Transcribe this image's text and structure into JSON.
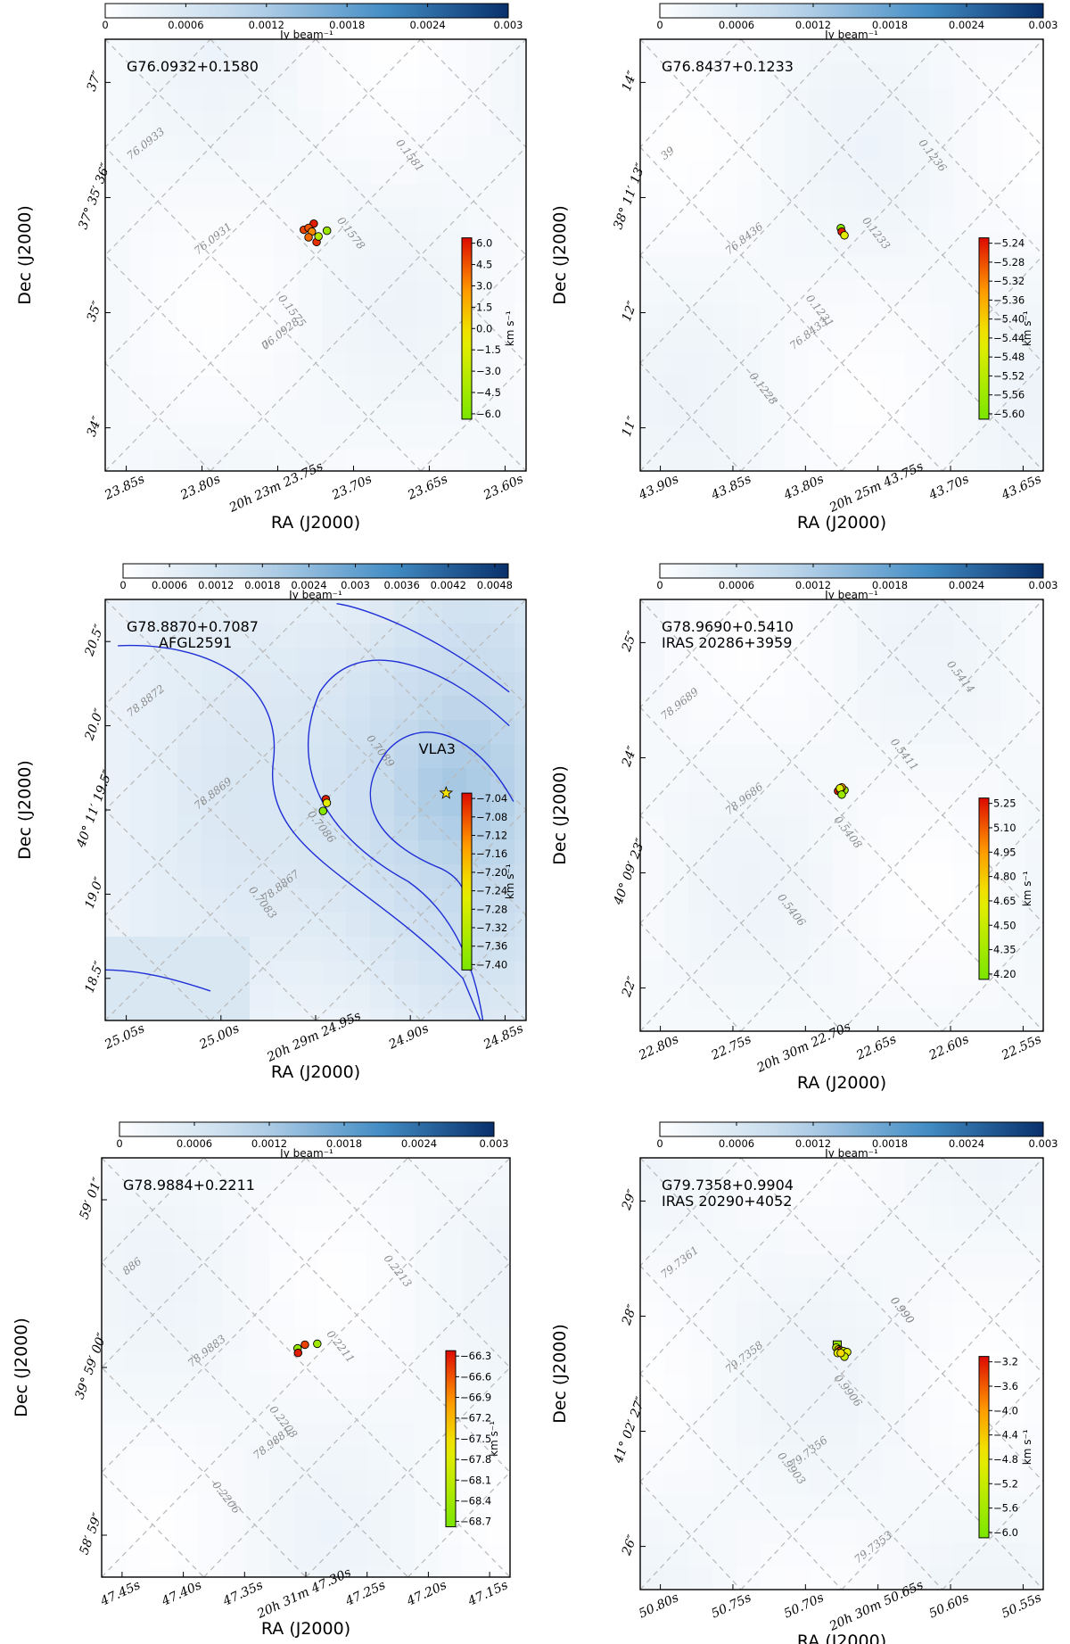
{
  "figure_title": "Maser spot maps over continuum images",
  "chart_data": [
    {
      "type": "scatter",
      "title": "G76.0932+0.1580",
      "subtitle": "",
      "xlabel": "RA (J2000)",
      "ylabel": "Dec (J2000)",
      "x_ticks": [
        "23.85s",
        "23.80s",
        "20h 23m 23.75s",
        "23.70s",
        "23.65s",
        "23.60s"
      ],
      "y_ticks": [
        "37″",
        "37° 35′ 36″",
        "35″",
        "34″"
      ],
      "continuum_colorbar": {
        "ticks": [
          "0",
          "0.0006",
          "0.0012",
          "0.0018",
          "0.0024",
          "0.003"
        ],
        "unit": "Jy beam⁻¹",
        "range": [
          0,
          0.003
        ]
      },
      "velocity_colorbar": {
        "ticks": [
          "6.0",
          "4.5",
          "3.0",
          "1.5",
          "0.0",
          "−1.5",
          "−3.0",
          "−4.5",
          "−6.0"
        ],
        "unit": "km s⁻¹",
        "range": [
          -6.5,
          6.5
        ]
      },
      "galactic_grid_labels": [
        "76.0933",
        "76.0931",
        "76.0928",
        "0.1581",
        "0.1578",
        "0.1575",
        "0."
      ],
      "points": [
        {
          "dx": -0.04,
          "dy": 0.21,
          "v": 6.0,
          "marker": "o"
        },
        {
          "dx": -0.25,
          "dy": 0.08,
          "v": 5.0,
          "marker": "o"
        },
        {
          "dx": -0.15,
          "dy": 0.12,
          "v": 4.5,
          "marker": "o"
        },
        {
          "dx": -0.08,
          "dy": 0.04,
          "v": 3.2,
          "marker": "o"
        },
        {
          "dx": -0.15,
          "dy": -0.08,
          "v": 4.0,
          "marker": "o"
        },
        {
          "dx": 0.02,
          "dy": -0.18,
          "v": 5.5,
          "marker": "o"
        },
        {
          "dx": 0.06,
          "dy": -0.06,
          "v": -3.5,
          "marker": "o"
        },
        {
          "dx": 0.24,
          "dy": 0.06,
          "v": -4.8,
          "marker": "o"
        }
      ],
      "contours": false,
      "star": null
    },
    {
      "type": "scatter",
      "title": "G76.8437+0.1233",
      "subtitle": "",
      "xlabel": "RA (J2000)",
      "ylabel": "Dec (J2000)",
      "x_ticks": [
        "43.90s",
        "43.85s",
        "43.80s",
        "20h 25m 43.75s",
        "43.70s",
        "43.65s"
      ],
      "y_ticks": [
        "14″",
        "38° 11′ 13″",
        "12″",
        "11″"
      ],
      "continuum_colorbar": {
        "ticks": [
          "0",
          "0.0006",
          "0.0012",
          "0.0018",
          "0.0024",
          "0.003"
        ],
        "unit": "Jy beam⁻¹",
        "range": [
          0,
          0.003
        ]
      },
      "velocity_colorbar": {
        "ticks": [
          "−5.24",
          "−5.28",
          "−5.32",
          "−5.36",
          "−5.40",
          "−5.44",
          "−5.48",
          "−5.52",
          "−5.56",
          "−5.60"
        ],
        "unit": "km s⁻¹",
        "range": [
          -5.6,
          -5.235
        ]
      },
      "galactic_grid_labels": [
        "39",
        "76.8436",
        "76.8433",
        "0.1236",
        "0.1233",
        "0.1231",
        "0.1228"
      ],
      "points": [
        {
          "dx": -0.02,
          "dy": 0.12,
          "v": -5.58,
          "marker": "o"
        },
        {
          "dx": 0.0,
          "dy": 0.04,
          "v": -5.25,
          "marker": "o"
        },
        {
          "dx": 0.06,
          "dy": -0.04,
          "v": -5.45,
          "marker": "o"
        }
      ],
      "contours": false,
      "star": null
    },
    {
      "type": "scatter",
      "title": "G78.8870+0.7087",
      "subtitle": "AFGL2591",
      "xlabel": "RA (J2000)",
      "ylabel": "Dec (J2000)",
      "x_ticks": [
        "25.05s",
        "25.00s",
        "20h 29m 24.95s",
        "24.90s",
        "24.85s"
      ],
      "y_ticks": [
        "20.5″",
        "20.0″",
        "40° 11′ 19.5″",
        "19.0″",
        "18.5″"
      ],
      "continuum_colorbar": {
        "ticks": [
          "0",
          "0.0006",
          "0.0012",
          "0.0018",
          "0.0024",
          "0.003",
          "0.0036",
          "0.0042",
          "0.0048"
        ],
        "unit": "Jy beam⁻¹",
        "range": [
          0,
          0.005
        ]
      },
      "velocity_colorbar": {
        "ticks": [
          "−7.04",
          "−7.08",
          "−7.12",
          "−7.16",
          "−7.20",
          "−7.24",
          "−7.28",
          "−7.32",
          "−7.36",
          "−7.40"
        ],
        "unit": "km s⁻¹",
        "range": [
          -7.4,
          -7.035
        ]
      },
      "galactic_grid_labels": [
        "78.8872",
        "78.8869",
        "78.8867",
        "0.7089",
        "0.7086",
        "0.7083"
      ],
      "points": [
        {
          "dx": -0.23,
          "dy": 0.05,
          "v": -7.05,
          "marker": "o"
        },
        {
          "dx": -0.21,
          "dy": -0.03,
          "v": -7.25,
          "marker": "o"
        },
        {
          "dx": -0.29,
          "dy": -0.2,
          "v": -7.38,
          "marker": "o"
        }
      ],
      "contours": true,
      "star": {
        "label": "VLA3"
      }
    },
    {
      "type": "scatter",
      "title": "G78.9690+0.5410",
      "subtitle": "IRAS 20286+3959",
      "xlabel": "RA (J2000)",
      "ylabel": "Dec (J2000)",
      "x_ticks": [
        "22.80s",
        "22.75s",
        "20h 30m 22.70s",
        "22.65s",
        "22.60s",
        "22.55s"
      ],
      "y_ticks": [
        "25″",
        "24″",
        "40° 09′ 23″",
        "22″"
      ],
      "continuum_colorbar": {
        "ticks": [
          "0",
          "0.0006",
          "0.0012",
          "0.0018",
          "0.0024",
          "0.003"
        ],
        "unit": "Jy beam⁻¹",
        "range": [
          0,
          0.003
        ]
      },
      "velocity_colorbar": {
        "ticks": [
          "5.25",
          "5.10",
          "4.95",
          "4.80",
          "4.65",
          "4.50",
          "4.35",
          "4.20"
        ],
        "unit": "km s⁻¹",
        "range": [
          4.1,
          5.36
        ]
      },
      "galactic_grid_labels": [
        "78.9689",
        "78.9686",
        "0.5414",
        "0.5411",
        "0.5408",
        "0.5406"
      ],
      "points": [
        {
          "dx": -0.08,
          "dy": 0.06,
          "v": 5.3,
          "marker": "o"
        },
        {
          "dx": -0.02,
          "dy": 0.06,
          "v": 4.7,
          "marker": "o"
        },
        {
          "dx": 0.02,
          "dy": 0.1,
          "v": 4.9,
          "marker": "o"
        },
        {
          "dx": 0.06,
          "dy": 0.08,
          "v": 4.3,
          "marker": "o"
        },
        {
          "dx": 0.0,
          "dy": 0.14,
          "v": 5.0,
          "marker": "o"
        },
        {
          "dx": -0.04,
          "dy": 0.12,
          "v": 4.6,
          "marker": "o"
        },
        {
          "dx": 0.0,
          "dy": -0.02,
          "v": 4.25,
          "marker": "o"
        }
      ],
      "contours": false,
      "star": null
    },
    {
      "type": "scatter",
      "title": "G78.9884+0.2211",
      "subtitle": "",
      "xlabel": "RA (J2000)",
      "ylabel": "Dec (J2000)",
      "x_ticks": [
        "47.45s",
        "47.40s",
        "47.35s",
        "20h 31m 47.30s",
        "47.25s",
        "47.20s",
        "47.15s"
      ],
      "y_ticks": [
        "59′ 01″",
        "39° 59′ 00″",
        "58′ 59″"
      ],
      "continuum_colorbar": {
        "ticks": [
          "0",
          "0.0006",
          "0.0012",
          "0.0018",
          "0.0024",
          "0.003"
        ],
        "unit": "Jy beam⁻¹",
        "range": [
          0,
          0.003
        ]
      },
      "velocity_colorbar": {
        "ticks": [
          "−66.3",
          "−66.6",
          "−66.9",
          "−67.2",
          "−67.5",
          "−67.8",
          "−68.1",
          "−68.4",
          "−68.7"
        ],
        "unit": "km s⁻¹",
        "range": [
          -68.9,
          -66.2
        ]
      },
      "galactic_grid_labels": [
        "886",
        "78.9883",
        "78.9881",
        "0.2213",
        "0.2211",
        "0.2208",
        "0.2206"
      ],
      "points": [
        {
          "dx": -0.18,
          "dy": -0.04,
          "v": -68.6,
          "marker": "o"
        },
        {
          "dx": -0.17,
          "dy": -0.14,
          "v": -66.3,
          "marker": "o"
        },
        {
          "dx": -0.02,
          "dy": 0.04,
          "v": -66.5,
          "marker": "o"
        },
        {
          "dx": 0.25,
          "dy": 0.06,
          "v": -68.5,
          "marker": "o"
        }
      ],
      "contours": false,
      "star": null
    },
    {
      "type": "scatter",
      "title": "G79.7358+0.9904",
      "subtitle": "IRAS 20290+4052",
      "xlabel": "RA (J2000)",
      "ylabel": "Dec (J2000)",
      "x_ticks": [
        "50.80s",
        "50.75s",
        "50.70s",
        "20h 30m 50.65s",
        "50.60s",
        "50.55s"
      ],
      "y_ticks": [
        "29″",
        "28″",
        "41° 02′ 27″",
        "26″"
      ],
      "continuum_colorbar": {
        "ticks": [
          "0",
          "0.0006",
          "0.0012",
          "0.0018",
          "0.0024",
          "0.003"
        ],
        "unit": "Jy beam⁻¹",
        "range": [
          0,
          0.003
        ]
      },
      "velocity_colorbar": {
        "ticks": [
          "−3.2",
          "−3.6",
          "−4.0",
          "−4.4",
          "−4.8",
          "−5.2",
          "−5.6",
          "−6.0"
        ],
        "unit": "km s⁻¹",
        "range": [
          -6.3,
          -3.0
        ]
      },
      "galactic_grid_labels": [
        "79.7361",
        "79.7358",
        "79.7356",
        "79.7353",
        "0.990",
        "0.9906",
        "0.9903",
        "0.990"
      ],
      "points": [
        {
          "dx": -0.1,
          "dy": 0.16,
          "v": -6.0,
          "marker": "s"
        },
        {
          "dx": -0.12,
          "dy": 0.1,
          "v": -5.4,
          "marker": "o"
        },
        {
          "dx": -0.07,
          "dy": 0.06,
          "v": -4.4,
          "marker": "o"
        },
        {
          "dx": -0.03,
          "dy": 0.04,
          "v": -4.1,
          "marker": "o"
        },
        {
          "dx": -0.05,
          "dy": 0.02,
          "v": -3.3,
          "marker": "o"
        },
        {
          "dx": -0.09,
          "dy": -0.02,
          "v": -4.9,
          "marker": "o"
        },
        {
          "dx": 0.04,
          "dy": 0.02,
          "v": -5.2,
          "marker": "o"
        },
        {
          "dx": 0.12,
          "dy": 0.0,
          "v": -5.0,
          "marker": "o"
        },
        {
          "dx": 0.06,
          "dy": -0.1,
          "v": -5.3,
          "marker": "o"
        },
        {
          "dx": -0.02,
          "dy": -0.02,
          "v": -4.6,
          "marker": "o"
        }
      ],
      "contours": false,
      "star": null
    }
  ]
}
